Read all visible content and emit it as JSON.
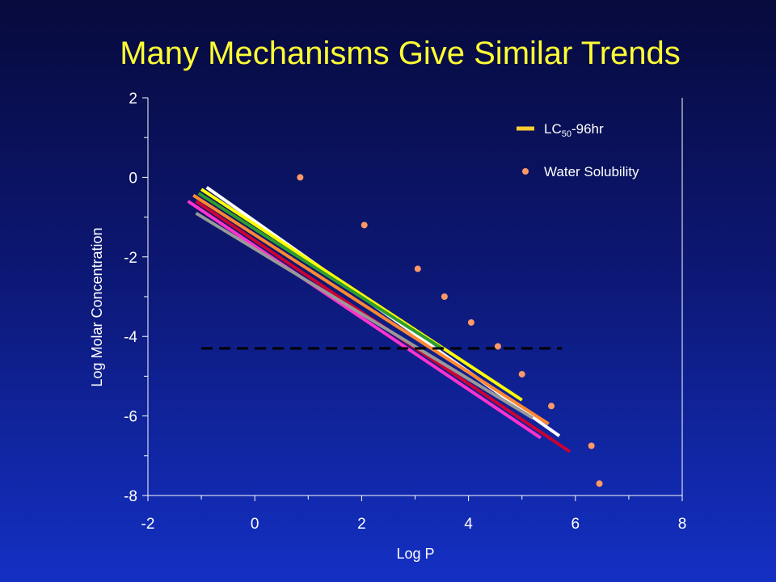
{
  "title": "Many Mechanisms Give Similar Trends",
  "chart_data": {
    "type": "scatter",
    "title": "Many Mechanisms Give Similar Trends",
    "xlabel": "Log P",
    "ylabel": "Log Molar Concentration",
    "xlim": [
      -2,
      8
    ],
    "ylim": [
      -8,
      2
    ],
    "x_ticks": [
      "-2",
      "0",
      "2",
      "4",
      "6",
      "8"
    ],
    "y_ticks": [
      "2",
      "0",
      "-2",
      "-4",
      "-6",
      "-8"
    ],
    "legend": {
      "position": "top-right",
      "entries": [
        {
          "label_main": "LC",
          "label_sub": "50",
          "label_tail": "-96hr",
          "marker": "line",
          "color": "#ffcc33"
        },
        {
          "label_main": "Water Solubility",
          "marker": "dot",
          "color": "#ff9966"
        }
      ]
    },
    "lines": [
      {
        "color": "#ffffff",
        "x": [
          -0.9,
          5.7
        ],
        "y": [
          -0.25,
          -6.5
        ]
      },
      {
        "color": "#ffff00",
        "x": [
          -1.0,
          5.0
        ],
        "y": [
          -0.3,
          -5.6
        ]
      },
      {
        "color": "#2e9e2e",
        "x": [
          -1.05,
          3.5
        ],
        "y": [
          -0.4,
          -4.3
        ]
      },
      {
        "color": "#ff8833",
        "x": [
          -1.15,
          5.5
        ],
        "y": [
          -0.45,
          -6.2
        ]
      },
      {
        "color": "#cc0033",
        "x": [
          -1.1,
          5.9
        ],
        "y": [
          -0.6,
          -6.9
        ]
      },
      {
        "color": "#ff33cc",
        "x": [
          -1.25,
          5.35
        ],
        "y": [
          -0.6,
          -6.55
        ]
      },
      {
        "color": "#999999",
        "x": [
          -1.1,
          5.2
        ],
        "y": [
          -0.9,
          -6.05
        ]
      }
    ],
    "water_solubility": {
      "color": "#ff9966",
      "x": [
        0.85,
        2.05,
        3.05,
        3.55,
        4.05,
        4.55,
        5.0,
        5.55,
        6.3,
        6.45
      ],
      "y": [
        0.0,
        -1.2,
        -2.3,
        -3.0,
        -3.65,
        -4.25,
        -4.95,
        -5.75,
        -6.75,
        -7.7
      ]
    },
    "threshold": {
      "y": -4.3,
      "x": [
        -1.0,
        5.75
      ],
      "style": "dashed",
      "color": "#000000"
    }
  }
}
